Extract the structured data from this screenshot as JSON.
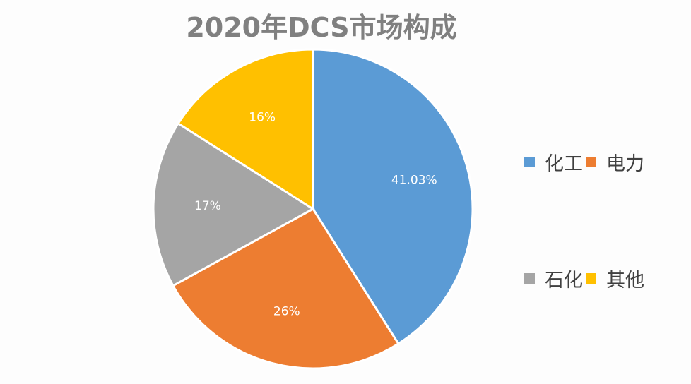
{
  "chart_data": {
    "type": "pie",
    "title": "2020年DCS市场构成",
    "categories": [
      "化工",
      "电力",
      "石化",
      "其他"
    ],
    "values": [
      41.03,
      26,
      17,
      16
    ],
    "labels": [
      "41.03%",
      "26%",
      "17%",
      "16%"
    ],
    "colors": [
      "#5b9bd5",
      "#ed7d31",
      "#a5a5a5",
      "#ffc000"
    ],
    "start_angle": "12 o'clock",
    "direction": "clockwise",
    "legend_position": "right"
  },
  "title": "2020年DCS市场构成",
  "legend": {
    "items": [
      {
        "label": "化工",
        "color": "#5b9bd5"
      },
      {
        "label": "电力",
        "color": "#ed7d31"
      },
      {
        "label": "石化",
        "color": "#a5a5a5"
      },
      {
        "label": "其他",
        "color": "#ffc000"
      }
    ]
  }
}
